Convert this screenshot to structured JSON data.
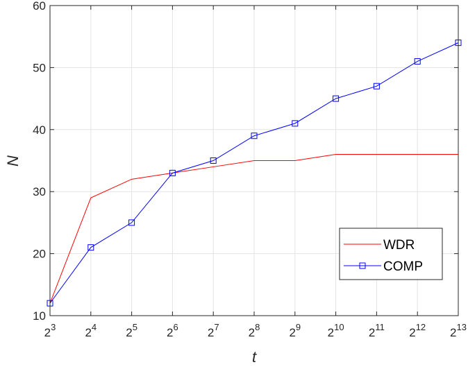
{
  "chart_data": {
    "type": "line",
    "x_scale": "log2",
    "xlabel": "t",
    "ylabel": "N",
    "xlim": [
      8,
      8192
    ],
    "ylim": [
      10,
      60
    ],
    "x_ticks": [
      {
        "value": 8,
        "base": "2",
        "exp": "3"
      },
      {
        "value": 16,
        "base": "2",
        "exp": "4"
      },
      {
        "value": 32,
        "base": "2",
        "exp": "5"
      },
      {
        "value": 64,
        "base": "2",
        "exp": "6"
      },
      {
        "value": 128,
        "base": "2",
        "exp": "7"
      },
      {
        "value": 256,
        "base": "2",
        "exp": "8"
      },
      {
        "value": 512,
        "base": "2",
        "exp": "9"
      },
      {
        "value": 1024,
        "base": "2",
        "exp": "10"
      },
      {
        "value": 2048,
        "base": "2",
        "exp": "11"
      },
      {
        "value": 4096,
        "base": "2",
        "exp": "12"
      },
      {
        "value": 8192,
        "base": "2",
        "exp": "13"
      }
    ],
    "y_ticks": [
      "10",
      "20",
      "30",
      "40",
      "50",
      "60"
    ],
    "grid": true,
    "legend_position": "bottom-right",
    "x": [
      8,
      16,
      32,
      64,
      128,
      256,
      512,
      1024,
      2048,
      4096,
      8192
    ],
    "series": [
      {
        "name": "WDR",
        "color": "#ff0000",
        "marker": "none",
        "values": [
          12,
          29,
          32,
          33,
          34,
          35,
          35,
          36,
          36,
          36,
          36
        ]
      },
      {
        "name": "COMP",
        "color": "#0000ff",
        "marker": "square",
        "values": [
          12,
          21,
          25,
          33,
          35,
          39,
          41,
          45,
          47,
          51,
          54
        ]
      }
    ]
  }
}
